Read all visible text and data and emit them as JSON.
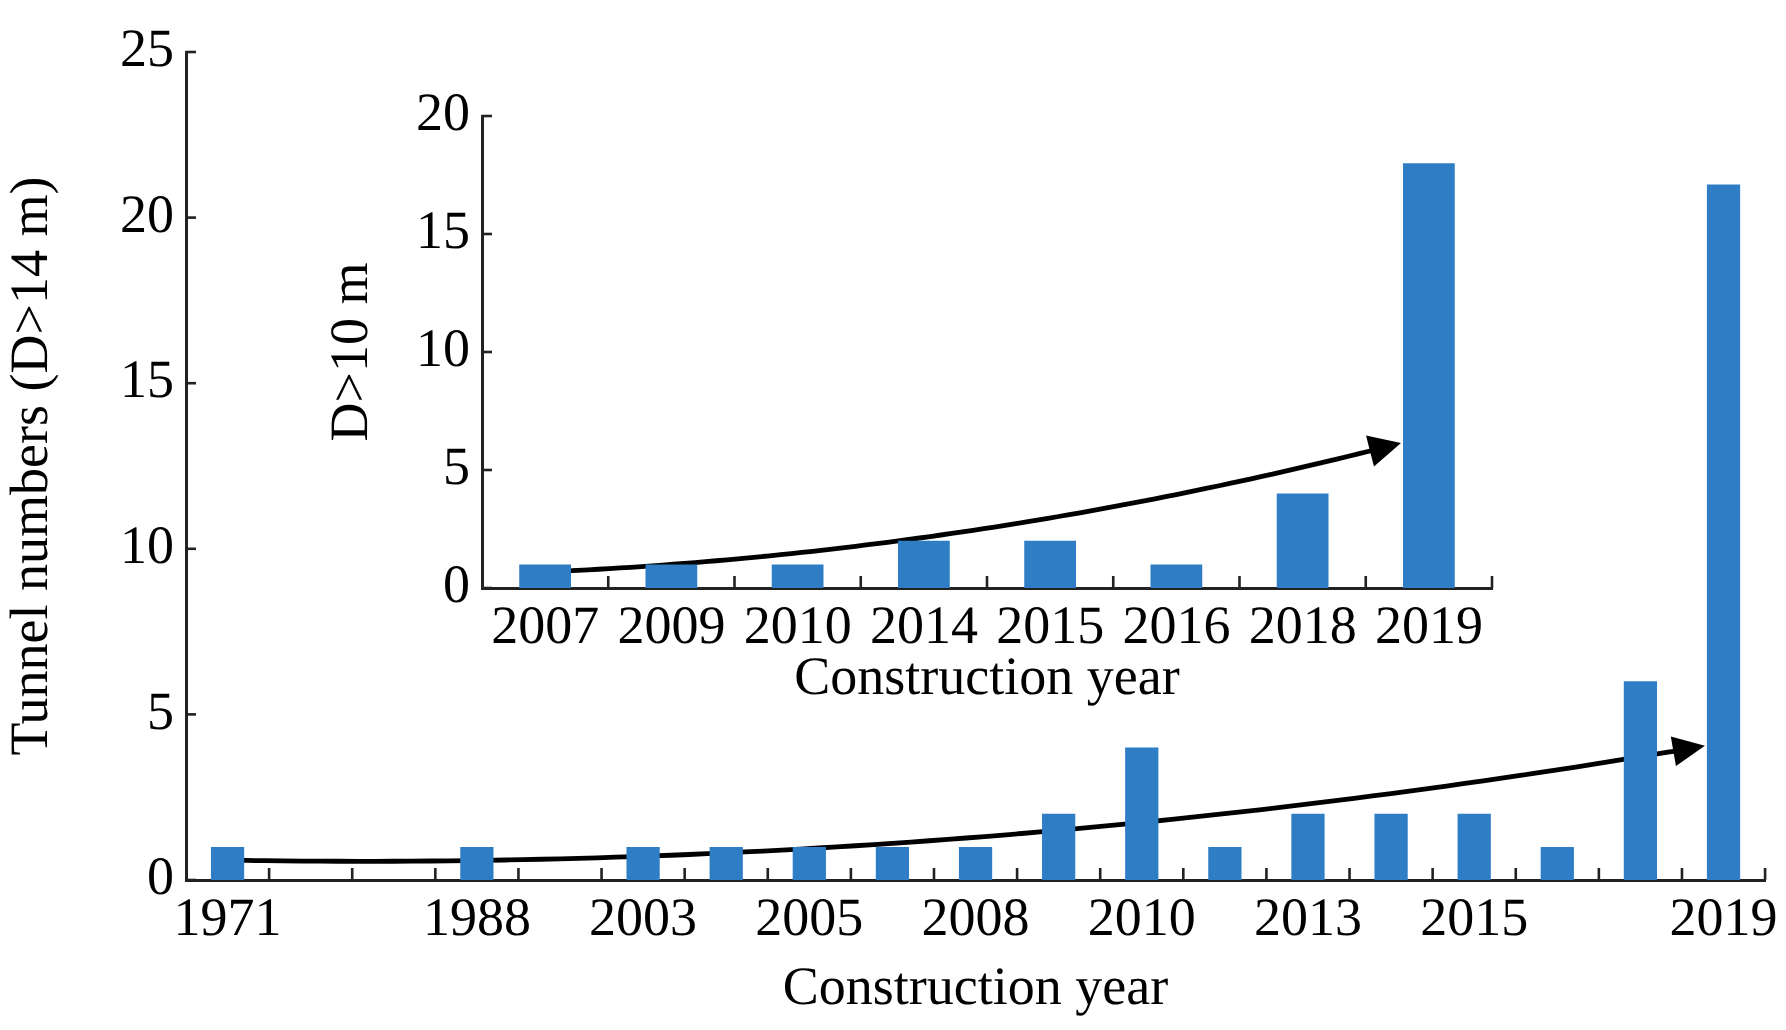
{
  "chart_data": [
    {
      "type": "bar",
      "xlabel": "Construction year",
      "ylabel": "Tunnel numbers (D>14 m)",
      "categories": [
        "1971",
        null,
        null,
        "1988",
        null,
        "2003",
        null,
        "2005",
        null,
        "2008",
        null,
        "2010",
        null,
        "2013",
        null,
        "2015",
        null,
        null,
        "2019"
      ],
      "values": [
        1,
        null,
        null,
        1,
        null,
        1,
        1,
        1,
        1,
        1,
        2,
        4,
        1,
        2,
        2,
        2,
        1,
        6,
        21
      ],
      "color": "#2e7dc5",
      "ylim": [
        0,
        25
      ],
      "yticks": [
        0,
        5,
        10,
        15,
        20,
        25
      ]
    },
    {
      "type": "bar",
      "xlabel": "Construction year",
      "ylabel": "D>10 m",
      "categories": [
        "2007",
        "2009",
        "2010",
        "2014",
        "2015",
        "2016",
        "2018",
        "2019"
      ],
      "values": [
        1,
        1,
        1,
        2,
        2,
        1,
        4,
        18
      ],
      "color": "#2e7dc5",
      "ylim": [
        0,
        20
      ],
      "yticks": [
        0,
        5,
        10,
        15,
        20
      ]
    }
  ]
}
